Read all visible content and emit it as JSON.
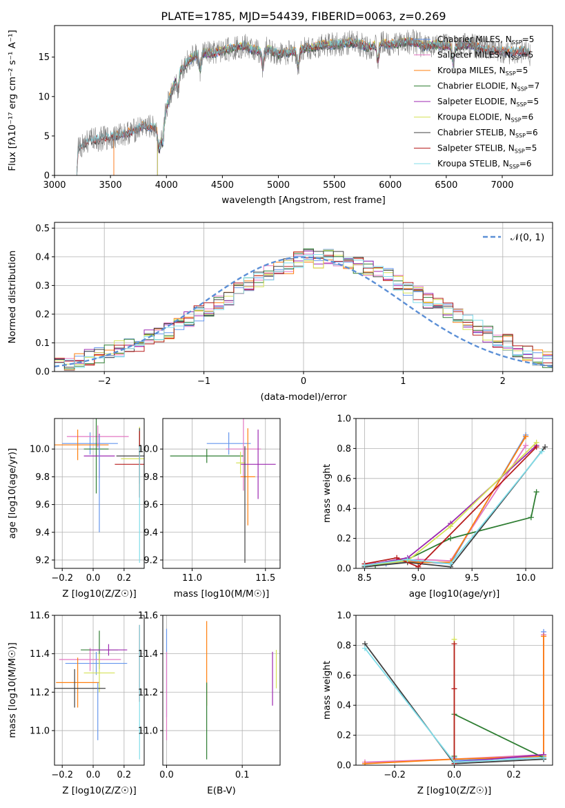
{
  "figure_title": "PLATE=1785, MJD=54439, FIBERID=0063, z=0.269",
  "chart_data": [
    {
      "type": "line",
      "title": "PLATE=1785, MJD=54439, FIBERID=0063, z=0.269",
      "xlabel": "wavelength [Angstrom, rest frame]",
      "ylabel": "Flux [fλ10⁻¹⁷ erg cm⁻² s⁻¹ A⁻¹]",
      "xlim": [
        3000,
        7450
      ],
      "ylim": [
        0,
        19
      ],
      "xticks": [
        3000,
        3500,
        4000,
        4500,
        5000,
        5500,
        6000,
        6500,
        7000
      ],
      "yticks": [
        0,
        5,
        10,
        15
      ],
      "grid": false,
      "legend_position": "top-right",
      "data_spectrum": {
        "name": "",
        "color": "#808080",
        "x": [
          3200,
          3210,
          3300,
          3400,
          3500,
          3600,
          3700,
          3800,
          3900,
          3950,
          4000,
          4100,
          4200,
          4300,
          4400,
          4500,
          4600,
          4700,
          4800,
          4900,
          5000,
          5100,
          5200,
          5300,
          5400,
          5500,
          5600,
          5700,
          5800,
          5900,
          6000,
          6100,
          6200,
          6300,
          6400,
          6500,
          6600,
          6700,
          6800,
          6900,
          7000,
          7100,
          7200,
          7250
        ],
        "y": [
          0,
          3.5,
          4.4,
          4.6,
          4.8,
          5.2,
          5.6,
          6.3,
          6.0,
          5.2,
          8.6,
          13.0,
          14.6,
          15.6,
          15.4,
          15.8,
          16.2,
          16.4,
          15.8,
          16.0,
          15.4,
          15.6,
          16.0,
          16.2,
          16.6,
          16.6,
          16.8,
          16.8,
          16.2,
          16.8,
          16.6,
          16.8,
          17.0,
          16.4,
          16.6,
          16.4,
          16.4,
          16.6,
          16.2,
          15.8,
          15.8,
          15.6,
          15.8,
          15.4
        ]
      },
      "series": [
        {
          "name": "Chabrier MILES, N_SSP=5",
          "label_text": "Chabrier MILES, N",
          "label_sub": "SSP",
          "label_suffix": "=5",
          "color": "#6495ed",
          "x_start": 3530,
          "x_end": 7250
        },
        {
          "name": "Salpeter MILES, N_SSP=5",
          "label_text": "Salpeter MILES, N",
          "label_sub": "SSP",
          "label_suffix": "=5",
          "color": "#e377c2",
          "x_start": 3530,
          "x_end": 7250
        },
        {
          "name": "Kroupa MILES, N_SSP=5",
          "label_text": "Kroupa MILES, N",
          "label_sub": "SSP",
          "label_suffix": "=5",
          "color": "#ff7f0e",
          "x_start": 3530,
          "x_end": 7250
        },
        {
          "name": "Chabrier ELODIE, N_SSP=7",
          "label_text": "Chabrier ELODIE, N",
          "label_sub": "SSP",
          "label_suffix": "=7",
          "color": "#2e7d32",
          "x_start": 3920,
          "x_end": 6790
        },
        {
          "name": "Salpeter ELODIE, N_SSP=5",
          "label_text": "Salpeter ELODIE, N",
          "label_sub": "SSP",
          "label_suffix": "=5",
          "color": "#9c27b0",
          "x_start": 3920,
          "x_end": 6790
        },
        {
          "name": "Kroupa ELODIE, N_SSP=6",
          "label_text": "Kroupa ELODIE, N",
          "label_sub": "SSP",
          "label_suffix": "=6",
          "color": "#d4e157",
          "x_start": 3920,
          "x_end": 6790
        },
        {
          "name": "Chabrier STELIB, N_SSP=6",
          "label_text": "Chabrier STELIB, N",
          "label_sub": "SSP",
          "label_suffix": "=6",
          "color": "#404040",
          "x_start": 3200,
          "x_end": 7250
        },
        {
          "name": "Salpeter STELIB, N_SSP=5",
          "label_text": "Salpeter STELIB, N",
          "label_sub": "SSP",
          "label_suffix": "=5",
          "color": "#b71c1c",
          "x_start": 3200,
          "x_end": 7250
        },
        {
          "name": "Kroupa STELIB, N_SSP=6",
          "label_text": "Kroupa STELIB, N",
          "label_sub": "SSP",
          "label_suffix": "=6",
          "color": "#80deea",
          "x_start": 3200,
          "x_end": 7250
        }
      ]
    },
    {
      "type": "line",
      "xlabel": "(data-model)/error",
      "ylabel": "Normed distribution",
      "xlim": [
        -2.5,
        2.5
      ],
      "ylim": [
        0,
        0.52
      ],
      "xticks": [
        -2,
        -1,
        0,
        1,
        2
      ],
      "yticks": [
        0.0,
        0.1,
        0.2,
        0.3,
        0.4,
        0.5
      ],
      "grid": true,
      "legend_position": "top-right",
      "legend": [
        "𝒩(0, 1)"
      ],
      "bins": {
        "start": -2.5,
        "width": 0.1
      },
      "histogram_mean": [
        0.02,
        0.03,
        0.04,
        0.05,
        0.06,
        0.07,
        0.08,
        0.09,
        0.1,
        0.12,
        0.13,
        0.14,
        0.16,
        0.18,
        0.2,
        0.22,
        0.24,
        0.26,
        0.28,
        0.3,
        0.32,
        0.34,
        0.36,
        0.37,
        0.39,
        0.4,
        0.39,
        0.4,
        0.39,
        0.38,
        0.37,
        0.36,
        0.34,
        0.33,
        0.31,
        0.29,
        0.27,
        0.25,
        0.23,
        0.21,
        0.19,
        0.17,
        0.15,
        0.13,
        0.11,
        0.1,
        0.08,
        0.06,
        0.05,
        0.04
      ],
      "normal_curve": {
        "name": "𝒩(0, 1)",
        "color": "#5b8fd6",
        "mean": 0,
        "sigma": 1
      }
    },
    {
      "type": "scatter",
      "xlabel": "Z [log10(Z/Z☉)]",
      "ylabel": "age [log10(age/yr)]",
      "xlim": [
        -0.25,
        0.33
      ],
      "ylim": [
        9.14,
        10.22
      ],
      "xticks": [
        -0.2,
        0.0,
        0.2
      ],
      "yticks": [
        9.2,
        9.4,
        9.6,
        9.8,
        10.0
      ],
      "grid": true,
      "points": [
        {
          "x": -0.02,
          "y": 10.04,
          "xerr": 0.18,
          "yerr": 0.08
        },
        {
          "x": 0.03,
          "y": 10.09,
          "xerr": 0.2,
          "yerr": 0.08
        },
        {
          "x": -0.1,
          "y": 10.03,
          "xerr": 0.2,
          "yerr": 0.11
        },
        {
          "x": 0.02,
          "y": 10.0,
          "xerr": 0.08,
          "yerr": 0.32
        },
        {
          "x": 0.04,
          "y": 9.95,
          "xerr": 0.1,
          "yerr": 0.16
        },
        {
          "x": 0.3,
          "y": 9.93,
          "xerr": 0.12,
          "yerr": 0.23
        },
        {
          "x": 0.3,
          "y": 9.95,
          "xerr": 0.15,
          "yerr": 0.2
        },
        {
          "x": 0.3,
          "y": 9.89,
          "xerr": 0.16,
          "yerr": 0.24
        },
        {
          "x": 0.3,
          "y": 9.6,
          "xerr": 0.0,
          "yerr": 0.42
        },
        {
          "x": 0.04,
          "y": 9.75,
          "xerr": 0.0,
          "yerr": 0.35
        }
      ]
    },
    {
      "type": "scatter",
      "xlabel": "mass [log10(M/M☉)]",
      "ylabel": "",
      "xlim": [
        10.8,
        11.6
      ],
      "ylim": [
        9.14,
        10.22
      ],
      "xticks": [
        11.0,
        11.5
      ],
      "yticks": [
        9.2,
        9.4,
        9.6,
        9.8,
        10.0
      ],
      "grid": true,
      "points": [
        {
          "x": 11.25,
          "y": 10.04,
          "xerr": 0.15,
          "yerr": 0.08
        },
        {
          "x": 11.35,
          "y": 10.0,
          "xerr": 0.12,
          "yerr": 0.3
        },
        {
          "x": 11.38,
          "y": 9.8,
          "xerr": 0.05,
          "yerr": 0.35
        },
        {
          "x": 11.1,
          "y": 9.95,
          "xerr": 0.25,
          "yerr": 0.05
        },
        {
          "x": 11.45,
          "y": 9.89,
          "xerr": 0.12,
          "yerr": 0.25
        },
        {
          "x": 11.33,
          "y": 9.9,
          "xerr": 0.03,
          "yerr": 0.08
        },
        {
          "x": 11.36,
          "y": 9.6,
          "xerr": 0.0,
          "yerr": 0.42
        }
      ]
    },
    {
      "type": "line",
      "xlabel": "age [log10(age/yr)]",
      "ylabel": "mass weight",
      "xlim": [
        8.42,
        10.25
      ],
      "ylim": [
        0,
        1.0
      ],
      "xticks": [
        8.5,
        9.0,
        9.5,
        10.0
      ],
      "yticks": [
        0.0,
        0.2,
        0.4,
        0.6,
        0.8,
        1.0
      ],
      "grid": true,
      "series": [
        {
          "name": "Chabrier MILES",
          "color": "#6495ed",
          "x": [
            8.5,
            8.7,
            8.9,
            9.3,
            10.0
          ],
          "y": [
            0.02,
            0.03,
            0.05,
            0.03,
            0.89
          ]
        },
        {
          "name": "Salpeter MILES",
          "color": "#e377c2",
          "x": [
            8.5,
            8.7,
            9.0,
            9.3,
            10.0
          ],
          "y": [
            0.03,
            0.04,
            0.06,
            0.05,
            0.82
          ]
        },
        {
          "name": "Kroupa MILES",
          "color": "#ff7f0e",
          "x": [
            8.5,
            8.8,
            9.0,
            9.3,
            10.0
          ],
          "y": [
            0.02,
            0.05,
            0.04,
            0.04,
            0.88
          ]
        },
        {
          "name": "Chabrier ELODIE",
          "color": "#2e7d32",
          "x": [
            8.6,
            8.9,
            9.3,
            10.05,
            10.1
          ],
          "y": [
            0.02,
            0.06,
            0.2,
            0.34,
            0.51
          ]
        },
        {
          "name": "Salpeter ELODIE",
          "color": "#9c27b0",
          "x": [
            8.5,
            8.9,
            9.3,
            10.1
          ],
          "y": [
            0.02,
            0.07,
            0.3,
            0.82
          ]
        },
        {
          "name": "Kroupa ELODIE",
          "color": "#d4e157",
          "x": [
            8.5,
            8.9,
            9.3,
            10.1
          ],
          "y": [
            0.02,
            0.05,
            0.28,
            0.84
          ]
        },
        {
          "name": "Chabrier STELIB",
          "color": "#404040",
          "x": [
            8.5,
            8.9,
            9.3,
            10.18
          ],
          "y": [
            0.01,
            0.04,
            0.01,
            0.81
          ]
        },
        {
          "name": "Salpeter STELIB",
          "color": "#b71c1c",
          "x": [
            8.5,
            8.8,
            9.0,
            10.1
          ],
          "y": [
            0.03,
            0.07,
            0.01,
            0.81
          ]
        },
        {
          "name": "Kroupa STELIB",
          "color": "#80deea",
          "x": [
            8.5,
            8.9,
            9.3,
            10.15
          ],
          "y": [
            0.02,
            0.06,
            0.03,
            0.78
          ]
        }
      ]
    },
    {
      "type": "scatter",
      "xlabel": "Z [log10(Z/Z☉)]",
      "ylabel": "mass [log10(M/M☉)]",
      "xlim": [
        -0.25,
        0.33
      ],
      "ylim": [
        10.82,
        11.6
      ],
      "xticks": [
        -0.2,
        0.0,
        0.2
      ],
      "yticks": [
        11.0,
        11.2,
        11.4,
        11.6
      ],
      "grid": true,
      "points": [
        {
          "x": 0.02,
          "y": 11.35,
          "xerr": 0.2,
          "yerr": 0.06
        },
        {
          "x": -0.02,
          "y": 11.37,
          "xerr": 0.2,
          "yerr": 0.06
        },
        {
          "x": -0.1,
          "y": 11.25,
          "xerr": 0.14,
          "yerr": 0.13
        },
        {
          "x": 0.04,
          "y": 11.42,
          "xerr": 0.12,
          "yerr": 0.1
        },
        {
          "x": 0.1,
          "y": 11.42,
          "xerr": 0.12,
          "yerr": 0.03
        },
        {
          "x": 0.04,
          "y": 11.3,
          "xerr": 0.1,
          "yerr": 0.1
        },
        {
          "x": -0.12,
          "y": 11.22,
          "xerr": 0.2,
          "yerr": 0.1
        },
        {
          "x": 0.3,
          "y": 11.35,
          "xerr": 0.0,
          "yerr": 0.2
        },
        {
          "x": 0.3,
          "y": 11.2,
          "xerr": 0.0,
          "yerr": 0.35
        },
        {
          "x": 0.03,
          "y": 11.1,
          "xerr": 0.0,
          "yerr": 0.15
        }
      ]
    },
    {
      "type": "scatter",
      "xlabel": "E(B-V)",
      "ylabel": "",
      "xlim": [
        -0.005,
        0.15
      ],
      "ylim": [
        10.82,
        11.6
      ],
      "xticks": [
        0.0,
        0.1
      ],
      "yticks": [
        11.0,
        11.2,
        11.4,
        11.6
      ],
      "grid": true,
      "points": [
        {
          "x": 0.0,
          "y": 11.3,
          "xerr": 0.0,
          "yerr": 0.23
        },
        {
          "x": 0.0,
          "y": 11.18,
          "xerr": 0.0,
          "yerr": 0.23
        },
        {
          "x": 0.053,
          "y": 11.35,
          "xerr": 0.0,
          "yerr": 0.22
        },
        {
          "x": 0.053,
          "y": 11.05,
          "xerr": 0.0,
          "yerr": 0.2
        },
        {
          "x": 0.14,
          "y": 11.27,
          "xerr": 0.0,
          "yerr": 0.14
        },
        {
          "x": 0.145,
          "y": 11.32,
          "xerr": 0.0,
          "yerr": 0.1
        }
      ]
    },
    {
      "type": "line",
      "xlabel": "Z [log10(Z/Z☉)]",
      "ylabel": "mass weight",
      "xlim": [
        -0.33,
        0.33
      ],
      "ylim": [
        0,
        1.0
      ],
      "xticks": [
        -0.2,
        0.0,
        0.2
      ],
      "yticks": [
        0.0,
        0.2,
        0.4,
        0.6,
        0.8,
        1.0
      ],
      "grid": true,
      "series": [
        {
          "name": "Chabrier MILES",
          "color": "#6495ed",
          "x": [
            0.0,
            0.0,
            0.3,
            0.3
          ],
          "y": [
            0.05,
            0.03,
            0.06,
            0.89
          ]
        },
        {
          "name": "Salpeter MILES",
          "color": "#e377c2",
          "x": [
            -0.3,
            0.0,
            0.3,
            0.3
          ],
          "y": [
            0.02,
            0.04,
            0.07,
            0.87
          ]
        },
        {
          "name": "Kroupa MILES",
          "color": "#ff7f0e",
          "x": [
            -0.3,
            0.0,
            0.3,
            0.3
          ],
          "y": [
            0.01,
            0.04,
            0.06,
            0.86
          ]
        },
        {
          "name": "Chabrier ELODIE",
          "color": "#2e7d32",
          "x": [
            0.0,
            0.0,
            0.3
          ],
          "y": [
            0.06,
            0.34,
            0.05
          ]
        },
        {
          "name": "Salpeter ELODIE",
          "color": "#9c27b0",
          "x": [
            0.0,
            0.3
          ],
          "y": [
            0.02,
            0.07
          ]
        },
        {
          "name": "Kroupa ELODIE",
          "color": "#d4e157",
          "x": [
            0.0,
            0.0
          ],
          "y": [
            0.02,
            0.84
          ]
        },
        {
          "name": "Chabrier STELIB",
          "color": "#404040",
          "x": [
            -0.3,
            0.0,
            0.3
          ],
          "y": [
            0.81,
            0.01,
            0.04
          ]
        },
        {
          "name": "Salpeter STELIB",
          "color": "#b71c1c",
          "x": [
            0.0,
            0.0,
            0.0
          ],
          "y": [
            0.01,
            0.51,
            0.81
          ]
        },
        {
          "name": "Kroupa STELIB",
          "color": "#80deea",
          "x": [
            -0.3,
            0.0,
            0.3
          ],
          "y": [
            0.78,
            0.02,
            0.05
          ]
        }
      ]
    }
  ]
}
